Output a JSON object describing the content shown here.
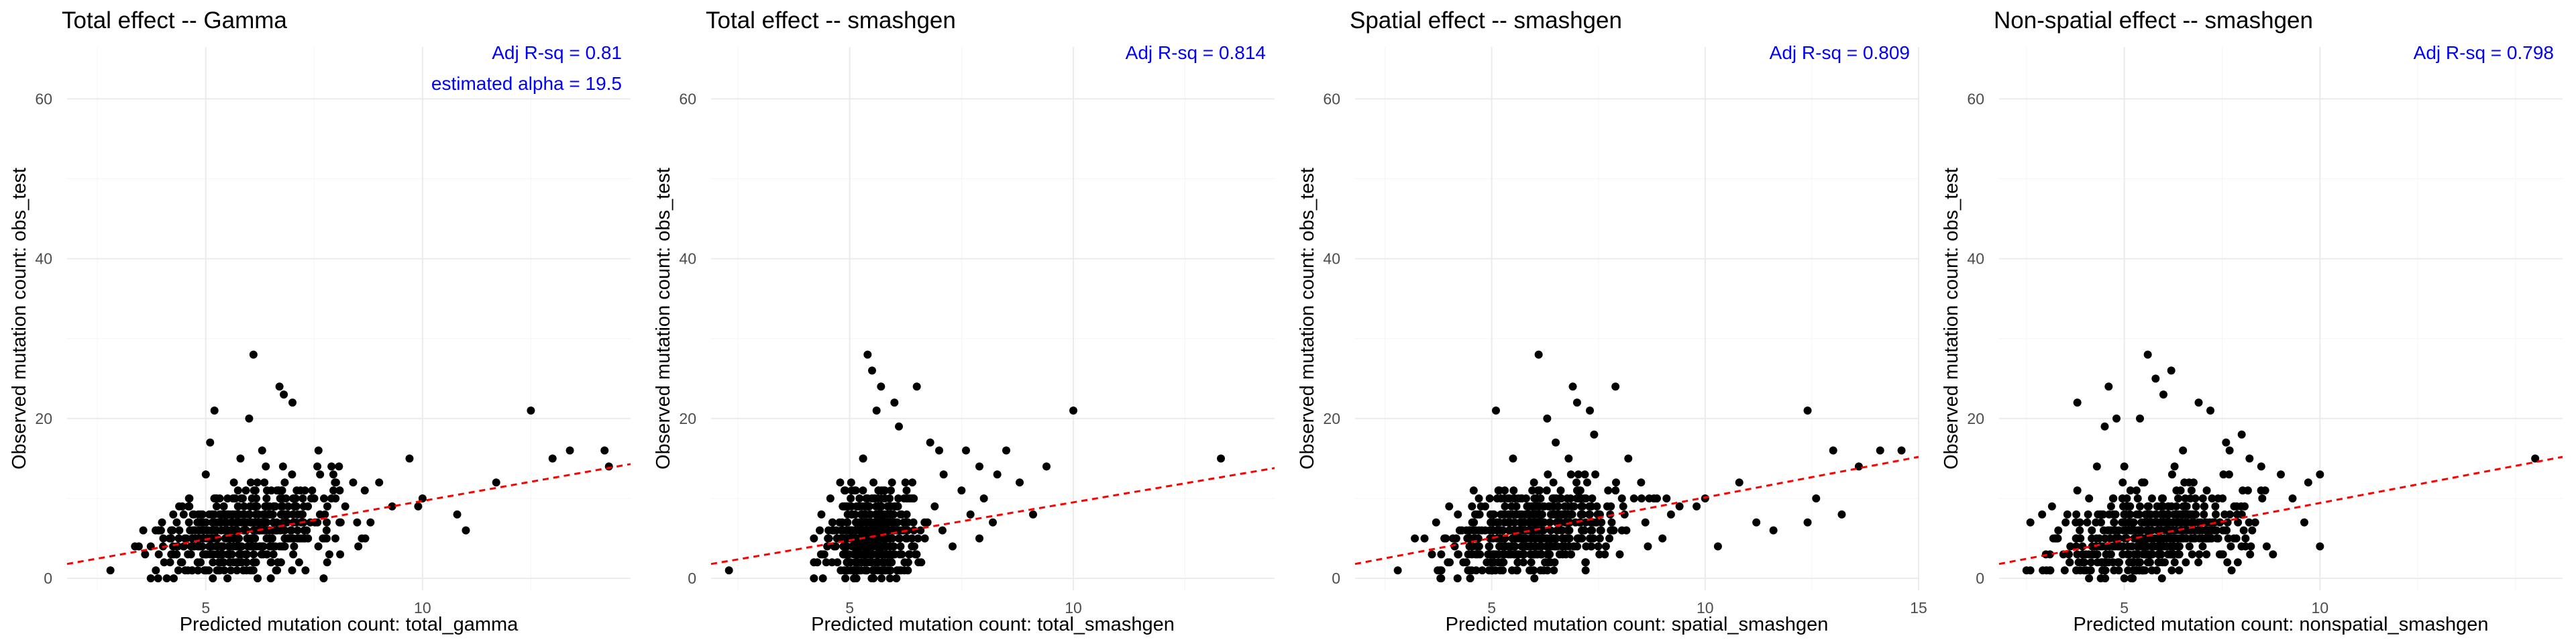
{
  "colors": {
    "points": "#000000",
    "fit_line": "#ff0000",
    "annotation": "#0000ff",
    "grid": "#ebebeb"
  },
  "chart_data": [
    {
      "type": "scatter",
      "title": "Total effect -- Gamma",
      "xlabel": "Predicted mutation count: total_gamma",
      "ylabel": "Observed mutation count: obs_test",
      "xlim": [
        1.8,
        14.8
      ],
      "ylim": [
        -1.5,
        66.5
      ],
      "xticks": [
        5,
        10
      ],
      "yticks": [
        0,
        20,
        40,
        60
      ],
      "grid": true,
      "annotations": [
        "Adj R-sq = 0.81",
        "estimated alpha = 19.5"
      ],
      "fit_line": {
        "style": "dashed",
        "x": [
          1.8,
          14.8
        ],
        "y": [
          1.8,
          14.3
        ]
      },
      "points_summary": {
        "center_x": 6.0,
        "spread_x": 1.0,
        "x_min": 3.0,
        "x_max": 9.0,
        "count": 520
      },
      "points": [
        [
          2.8,
          1
        ],
        [
          3.9,
          0
        ],
        [
          4.1,
          0
        ],
        [
          3.6,
          3
        ],
        [
          4.2,
          6
        ],
        [
          4.6,
          9
        ],
        [
          5.0,
          13
        ],
        [
          5.1,
          17
        ],
        [
          5.2,
          21
        ],
        [
          5.8,
          15
        ],
        [
          6.0,
          20
        ],
        [
          6.3,
          16
        ],
        [
          6.7,
          24
        ],
        [
          6.8,
          23
        ],
        [
          7.0,
          22
        ],
        [
          7.6,
          16
        ],
        [
          7.9,
          14
        ],
        [
          8.4,
          12
        ],
        [
          9.0,
          12
        ],
        [
          9.7,
          15
        ],
        [
          6.1,
          28
        ],
        [
          10.0,
          10
        ],
        [
          10.8,
          8
        ],
        [
          11.0,
          6
        ],
        [
          11.7,
          12
        ],
        [
          12.5,
          21
        ],
        [
          13.0,
          15
        ],
        [
          13.4,
          16
        ],
        [
          14.2,
          16
        ],
        [
          14.3,
          14
        ],
        [
          8.6,
          5
        ],
        [
          9.3,
          9
        ],
        [
          8.1,
          3
        ],
        [
          7.3,
          1
        ],
        [
          5.5,
          0
        ],
        [
          6.5,
          0
        ],
        [
          6.1,
          1
        ],
        [
          7.8,
          2
        ],
        [
          9.9,
          9
        ],
        [
          8.8,
          7
        ]
      ]
    },
    {
      "type": "scatter",
      "title": "Total effect -- smashgen",
      "xlabel": "Predicted mutation count: total_smashgen",
      "ylabel": "Observed mutation count: obs_test",
      "xlim": [
        1.9,
        14.5
      ],
      "ylim": [
        -1.5,
        66.5
      ],
      "xticks": [
        5,
        10
      ],
      "yticks": [
        0,
        20,
        40,
        60
      ],
      "grid": true,
      "annotations": [
        "Adj R-sq = 0.814"
      ],
      "fit_line": {
        "style": "dashed",
        "x": [
          1.9,
          14.5
        ],
        "y": [
          1.8,
          13.8
        ]
      },
      "points_summary": {
        "center_x": 5.5,
        "spread_x": 0.45,
        "x_min": 4.2,
        "x_max": 7.5,
        "count": 520
      },
      "points": [
        [
          2.3,
          1
        ],
        [
          4.2,
          2
        ],
        [
          4.4,
          0
        ],
        [
          4.7,
          6
        ],
        [
          4.9,
          11
        ],
        [
          5.3,
          15
        ],
        [
          5.4,
          28
        ],
        [
          5.5,
          26
        ],
        [
          5.6,
          21
        ],
        [
          5.7,
          24
        ],
        [
          6.0,
          22
        ],
        [
          6.1,
          19
        ],
        [
          6.5,
          24
        ],
        [
          6.8,
          17
        ],
        [
          7.0,
          16
        ],
        [
          7.6,
          16
        ],
        [
          7.9,
          14
        ],
        [
          8.5,
          16
        ],
        [
          8.8,
          12
        ],
        [
          9.4,
          14
        ],
        [
          10.0,
          21
        ],
        [
          13.3,
          15
        ],
        [
          7.1,
          13
        ],
        [
          7.5,
          11
        ],
        [
          8.0,
          10
        ],
        [
          6.4,
          12
        ],
        [
          6.9,
          9
        ],
        [
          7.3,
          4
        ],
        [
          8.2,
          7
        ],
        [
          6.3,
          1
        ],
        [
          5.9,
          0
        ],
        [
          5.1,
          0
        ],
        [
          4.8,
          1
        ],
        [
          6.6,
          2
        ],
        [
          7.7,
          8
        ],
        [
          8.3,
          13
        ],
        [
          9.1,
          8
        ],
        [
          6.2,
          6
        ],
        [
          7.9,
          5
        ],
        [
          5.8,
          3
        ]
      ]
    },
    {
      "type": "scatter",
      "title": "Spatial effect -- smashgen",
      "xlabel": "Predicted mutation count: spatial_smashgen",
      "ylabel": "Observed mutation count: obs_test",
      "xlim": [
        1.8,
        15.0
      ],
      "ylim": [
        -1.5,
        66.5
      ],
      "xticks": [
        5,
        10,
        15
      ],
      "yticks": [
        0,
        20,
        40,
        60
      ],
      "grid": true,
      "annotations": [
        "Adj R-sq = 0.809"
      ],
      "fit_line": {
        "style": "dashed",
        "x": [
          1.8,
          15.0
        ],
        "y": [
          1.8,
          15.2
        ]
      },
      "points_summary": {
        "center_x": 6.0,
        "spread_x": 1.0,
        "x_min": 3.2,
        "x_max": 9.2,
        "count": 520
      },
      "points": [
        [
          2.8,
          1
        ],
        [
          3.8,
          0
        ],
        [
          4.2,
          0
        ],
        [
          3.6,
          3
        ],
        [
          4.3,
          6
        ],
        [
          4.7,
          10
        ],
        [
          5.1,
          21
        ],
        [
          5.5,
          15
        ],
        [
          6.1,
          28
        ],
        [
          6.3,
          20
        ],
        [
          6.5,
          17
        ],
        [
          6.9,
          24
        ],
        [
          7.0,
          22
        ],
        [
          7.3,
          21
        ],
        [
          7.4,
          18
        ],
        [
          7.9,
          24
        ],
        [
          8.2,
          15
        ],
        [
          8.5,
          12
        ],
        [
          8.8,
          10
        ],
        [
          9.4,
          9
        ],
        [
          10.0,
          10
        ],
        [
          10.8,
          12
        ],
        [
          11.2,
          7
        ],
        [
          11.6,
          6
        ],
        [
          12.4,
          21
        ],
        [
          12.6,
          10
        ],
        [
          13.0,
          16
        ],
        [
          13.6,
          14
        ],
        [
          14.1,
          16
        ],
        [
          14.6,
          16
        ],
        [
          12.4,
          7
        ],
        [
          13.2,
          8
        ],
        [
          9.0,
          5
        ],
        [
          8.0,
          3
        ],
        [
          7.2,
          1
        ],
        [
          6.0,
          0
        ],
        [
          5.6,
          1
        ],
        [
          9.8,
          9
        ],
        [
          8.6,
          7
        ],
        [
          10.3,
          4
        ]
      ]
    },
    {
      "type": "scatter",
      "title": "Non-spatial effect -- smashgen",
      "xlabel": "Predicted mutation count: nonspatial_smashgen",
      "ylabel": "Observed mutation count: obs_test",
      "xlim": [
        1.8,
        16.2
      ],
      "ylim": [
        -1.5,
        66.5
      ],
      "xticks": [
        5,
        10
      ],
      "yticks": [
        0,
        20,
        40,
        60
      ],
      "grid": true,
      "annotations": [
        "Adj R-sq = 0.798"
      ],
      "fit_line": {
        "style": "dashed",
        "x": [
          1.8,
          16.2
        ],
        "y": [
          1.8,
          15.2
        ]
      },
      "points_summary": {
        "center_x": 5.8,
        "spread_x": 1.2,
        "x_min": 2.6,
        "x_max": 9.5,
        "count": 520
      },
      "points": [
        [
          2.5,
          1
        ],
        [
          2.9,
          8
        ],
        [
          3.3,
          5
        ],
        [
          3.6,
          2
        ],
        [
          3.8,
          11
        ],
        [
          4.1,
          10
        ],
        [
          4.3,
          14
        ],
        [
          4.5,
          19
        ],
        [
          4.8,
          20
        ],
        [
          5.0,
          14
        ],
        [
          5.4,
          20
        ],
        [
          5.6,
          28
        ],
        [
          5.8,
          25
        ],
        [
          6.0,
          23
        ],
        [
          6.2,
          26
        ],
        [
          6.5,
          16
        ],
        [
          6.9,
          22
        ],
        [
          7.2,
          21
        ],
        [
          7.6,
          17
        ],
        [
          8.0,
          18
        ],
        [
          8.5,
          14
        ],
        [
          9.0,
          13
        ],
        [
          9.7,
          12
        ],
        [
          10.0,
          13
        ],
        [
          10.0,
          4
        ],
        [
          15.5,
          15
        ],
        [
          3.8,
          22
        ],
        [
          4.6,
          24
        ],
        [
          8.2,
          15
        ],
        [
          9.3,
          10
        ],
        [
          3.1,
          3
        ],
        [
          8.8,
          3
        ],
        [
          7.9,
          2
        ],
        [
          6.4,
          1
        ],
        [
          5.2,
          0
        ],
        [
          4.4,
          0
        ],
        [
          9.6,
          7
        ],
        [
          7.4,
          5
        ],
        [
          3.5,
          7
        ],
        [
          8.6,
          11
        ]
      ]
    }
  ]
}
